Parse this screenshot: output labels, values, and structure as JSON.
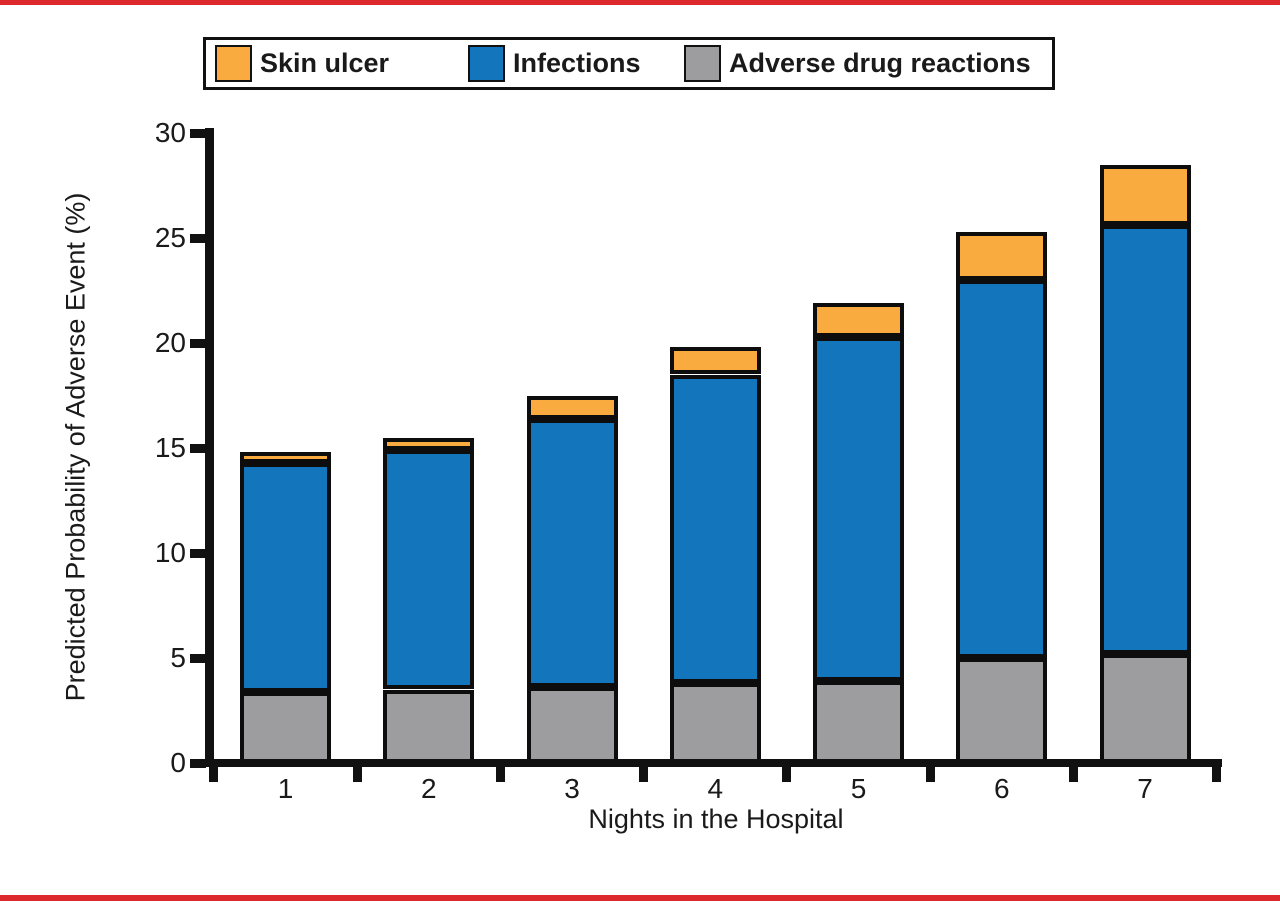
{
  "page": {
    "border_color": "#dc292d"
  },
  "legend": {
    "items": [
      {
        "label": "Skin ulcer",
        "color": "#faab40"
      },
      {
        "label": "Infections",
        "color": "#1375bc"
      },
      {
        "label": "Adverse drug reactions",
        "color": "#9d9da0"
      }
    ]
  },
  "chart_data": {
    "type": "bar",
    "stacked": true,
    "title": "",
    "xlabel": "Nights in the Hospital",
    "ylabel": "Predicted Probability of Adverse Event (%)",
    "categories": [
      "1",
      "2",
      "3",
      "4",
      "5",
      "6",
      "7"
    ],
    "y_ticks": [
      0,
      5,
      10,
      15,
      20,
      25,
      30
    ],
    "ylim": [
      0,
      30
    ],
    "grid": false,
    "legend_position": "top",
    "series": [
      {
        "name": "Adverse drug reactions",
        "color": "#9d9da0",
        "values": [
          3.4,
          3.5,
          3.6,
          3.8,
          3.9,
          5.0,
          5.2
        ]
      },
      {
        "name": "Infections",
        "color": "#1375bc",
        "values": [
          10.9,
          11.4,
          12.8,
          14.7,
          16.4,
          18.0,
          20.4
        ]
      },
      {
        "name": "Skin ulcer",
        "color": "#faab40",
        "values": [
          0.5,
          0.6,
          1.1,
          1.3,
          1.6,
          2.3,
          2.9
        ]
      }
    ],
    "stack_totals": [
      14.8,
      15.5,
      17.5,
      19.8,
      21.9,
      25.3,
      28.5
    ]
  }
}
